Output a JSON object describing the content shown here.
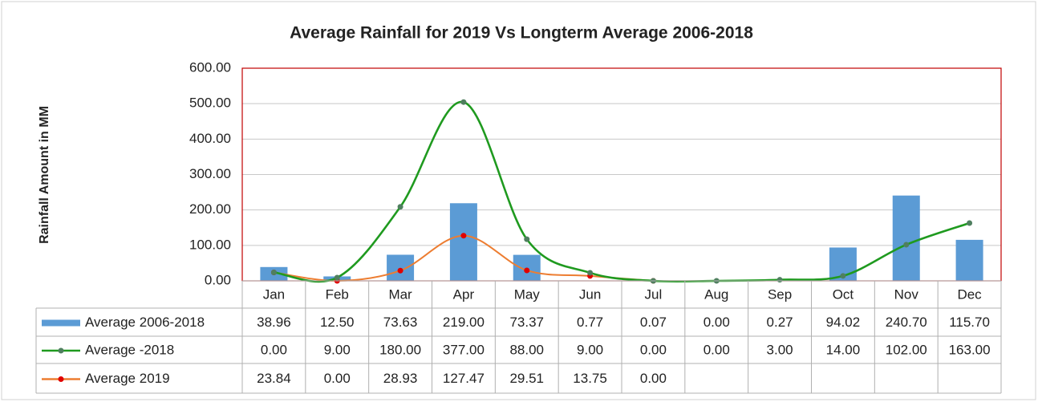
{
  "chart_data": {
    "type": "combo",
    "title": "Average Rainfall for 2019 Vs Longterm Average 2006-2018",
    "y_label": "Rainfall Amount in MM",
    "categories": [
      "Jan",
      "Feb",
      "Mar",
      "Apr",
      "May",
      "Jun",
      "Jul",
      "Aug",
      "Sep",
      "Oct",
      "Nov",
      "Dec"
    ],
    "ylim": [
      0,
      600
    ],
    "yticks": [
      {
        "value": 0,
        "label": "0.00"
      },
      {
        "value": 100,
        "label": "100.00"
      },
      {
        "value": 200,
        "label": "200.00"
      },
      {
        "value": 300,
        "label": "300.00"
      },
      {
        "value": 400,
        "label": "400.00"
      },
      {
        "value": 500,
        "label": "500.00"
      },
      {
        "value": 600,
        "label": "600.00"
      }
    ],
    "grid": true,
    "data_table": true,
    "series": [
      {
        "name": "Average 2006-2018",
        "type": "bar",
        "color": "#5b9bd5",
        "values": [
          38.96,
          12.5,
          73.63,
          219,
          73.37,
          0.77,
          0.07,
          0,
          0.27,
          94.02,
          240.7,
          115.7
        ],
        "value_labels": [
          "38.96",
          "12.50",
          "73.63",
          "219.00",
          "73.37",
          "0.77",
          "0.07",
          "0.00",
          "0.27",
          "94.02",
          "240.70",
          "115.70"
        ]
      },
      {
        "name": "Average -2018",
        "type": "line",
        "color": "#1f9a1f",
        "marker_color": "#4f7f5f",
        "stacked_on": 2,
        "values": [
          0,
          9,
          180,
          377,
          88,
          9,
          0,
          0,
          3,
          14,
          102,
          163
        ],
        "value_labels": [
          "0.00",
          "9.00",
          "180.00",
          "377.00",
          "88.00",
          "9.00",
          "0.00",
          "0.00",
          "3.00",
          "14.00",
          "102.00",
          "163.00"
        ]
      },
      {
        "name": "Average 2019",
        "type": "line",
        "color": "#ed7d31",
        "marker_color": "#e00000",
        "values": [
          23.84,
          0,
          28.93,
          127.47,
          29.51,
          13.75,
          0,
          null,
          null,
          null,
          null,
          null
        ],
        "value_labels": [
          "23.84",
          "0.00",
          "28.93",
          "127.47",
          "29.51",
          "13.75",
          "0.00",
          null,
          null,
          null,
          null,
          null
        ]
      }
    ]
  }
}
